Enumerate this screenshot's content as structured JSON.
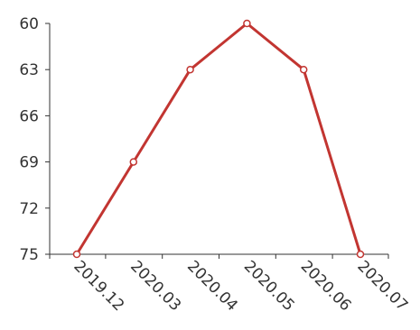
{
  "chart_data": {
    "type": "line",
    "categories": [
      "2019.12",
      "2020.03",
      "2020.04",
      "2020.05",
      "2020.06",
      "2020.07"
    ],
    "series": [
      {
        "values": [
          75,
          69,
          63,
          60,
          63,
          75
        ]
      }
    ],
    "y_axis": {
      "range": [
        60,
        75
      ],
      "inverted": true,
      "ticks": [
        60,
        63,
        66,
        69,
        72,
        75
      ],
      "tick_labels": [
        "60",
        "63",
        "66",
        "69",
        "72",
        "75"
      ]
    },
    "x_label_rotation_deg": 45,
    "grid": false,
    "legend": "none",
    "colors": {
      "line": "#c23531",
      "point_fill": "#ffffff",
      "axis": "#333333",
      "text": "#333333"
    }
  }
}
